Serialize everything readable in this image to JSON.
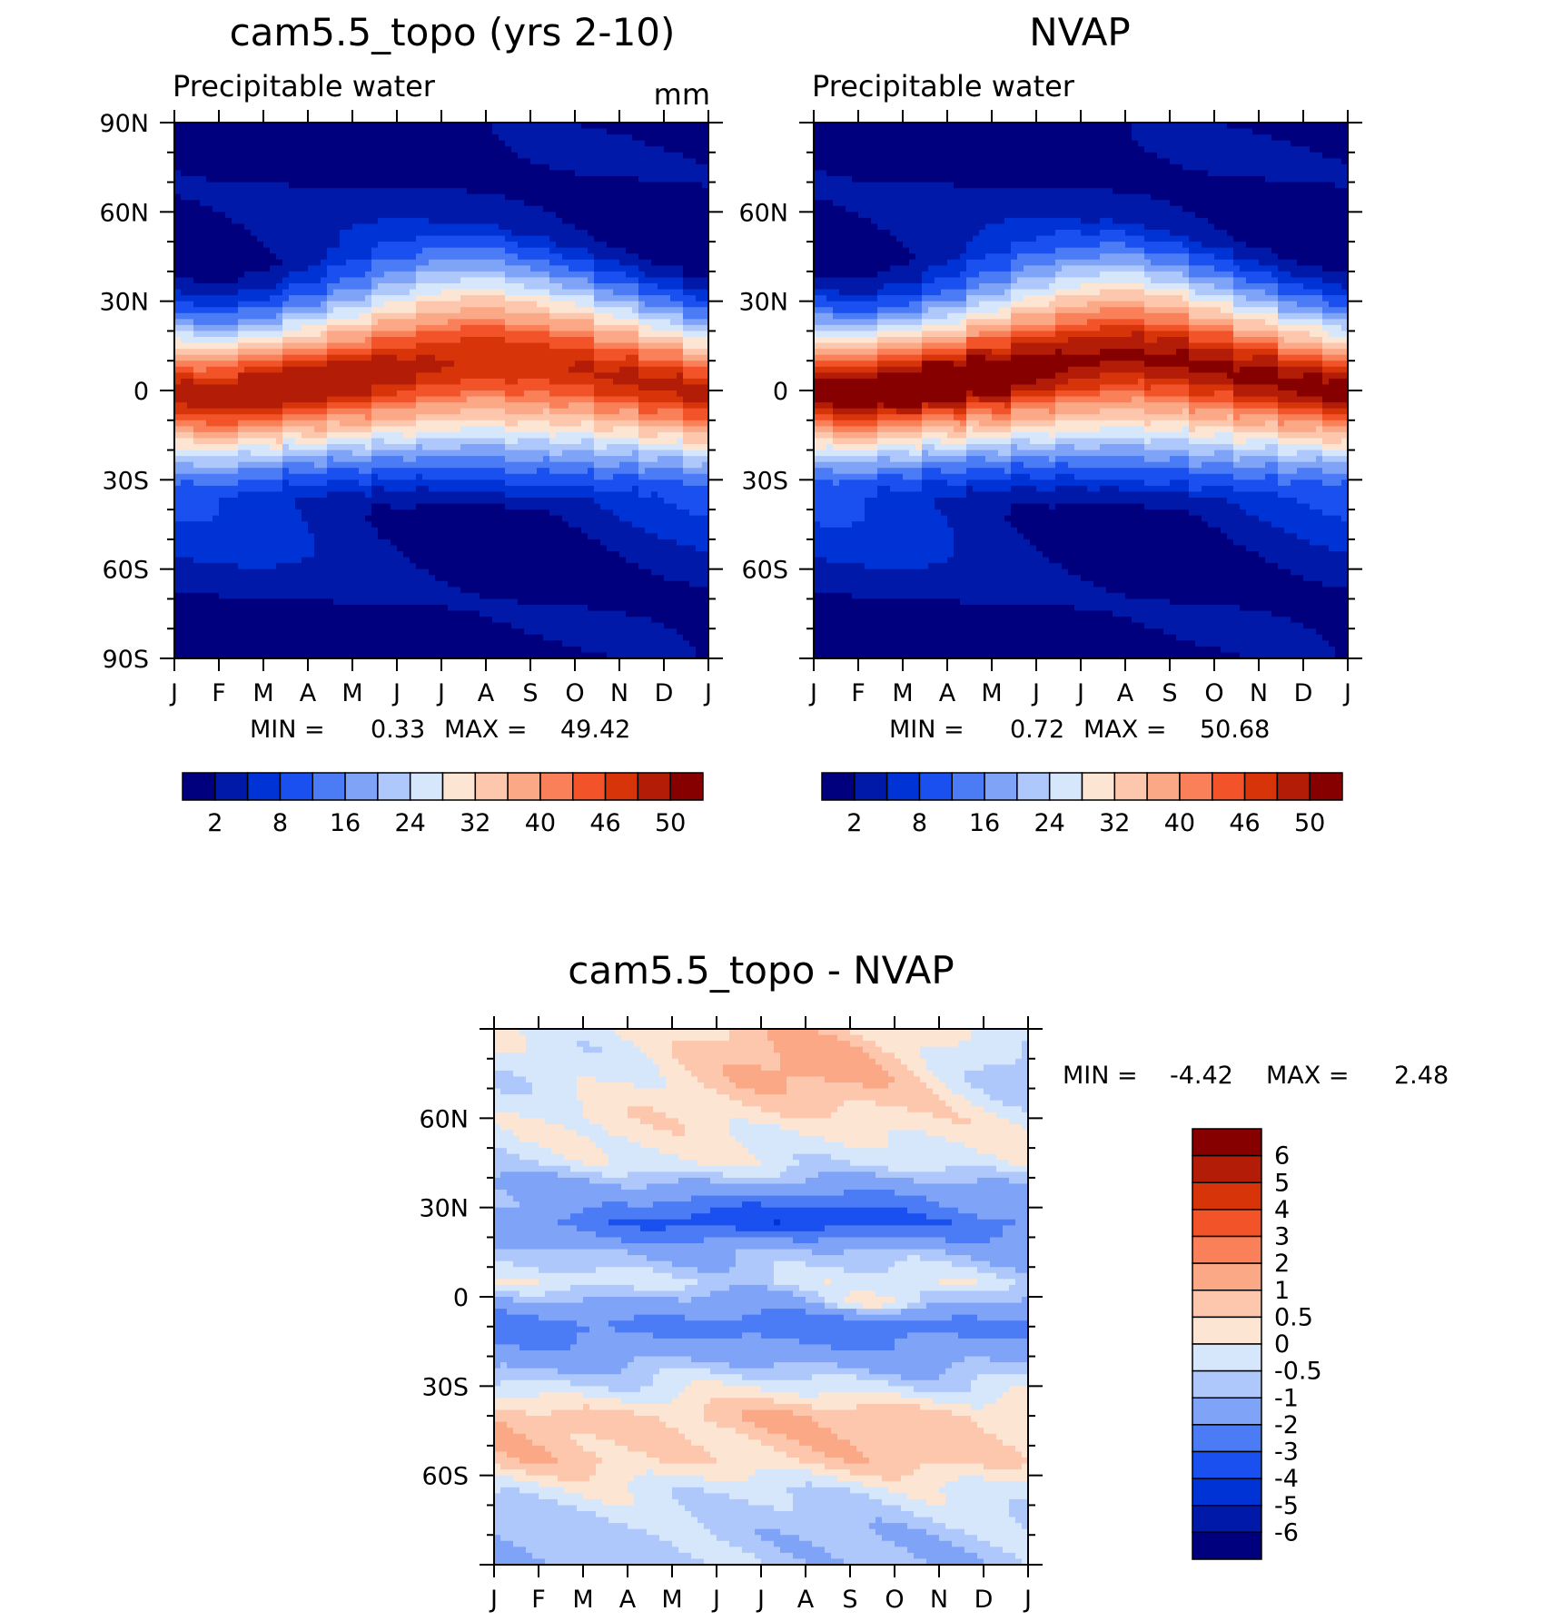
{
  "palette": {
    "pw": [
      "#00007e",
      "#0019a8",
      "#0033d6",
      "#1a4ff0",
      "#4b7cf5",
      "#7fa4f7",
      "#afc8fb",
      "#d6e7fb",
      "#fde5d3",
      "#fcc7ad",
      "#fba886",
      "#fa8059",
      "#f35328",
      "#d8340a",
      "#b31c06",
      "#870000"
    ],
    "diff": [
      "#00007e",
      "#0019a8",
      "#0033d6",
      "#1a4ff0",
      "#4b7cf5",
      "#7fa4f7",
      "#afc8fb",
      "#d6e7fb",
      "#fde5d3",
      "#fcc7ad",
      "#fba886",
      "#fa8059",
      "#f35328",
      "#d8340a",
      "#b31c06",
      "#870000"
    ]
  },
  "chart_data": [
    {
      "type": "heatmap",
      "title": "cam5.5_topo (yrs 2-10)",
      "subtitle": "Precipitable water",
      "units": "mm",
      "x_ticks": [
        "J",
        "F",
        "M",
        "A",
        "M",
        "J",
        "J",
        "A",
        "S",
        "O",
        "N",
        "D",
        "J"
      ],
      "y_ticks": [
        "90N",
        "60N",
        "30N",
        "0",
        "30S",
        "60S",
        "90S"
      ],
      "min_label": "MIN =",
      "min": "0.33",
      "max_label": "MAX =",
      "max": "49.42",
      "colorbar_labels": [
        "2",
        "8",
        "16",
        "24",
        "32",
        "40",
        "46",
        "50"
      ],
      "levels": [
        2,
        5,
        8,
        12,
        16,
        20,
        24,
        28,
        32,
        36,
        40,
        43,
        46,
        48,
        50
      ],
      "ylim": [
        -90,
        90
      ],
      "peak_lat_by_month": [
        -2,
        -3,
        -1,
        2,
        5,
        8,
        10,
        11,
        9,
        7,
        4,
        1
      ],
      "peak_value": 49.42
    },
    {
      "type": "heatmap",
      "title": "NVAP",
      "subtitle": "Precipitable water",
      "x_ticks": [
        "J",
        "F",
        "M",
        "A",
        "M",
        "J",
        "J",
        "A",
        "S",
        "O",
        "N",
        "D",
        "J"
      ],
      "y_ticks": [
        "60N",
        "30N",
        "0",
        "30S",
        "60S"
      ],
      "min_label": "MIN =",
      "min": "0.72",
      "max_label": "MAX =",
      "max": "50.68",
      "colorbar_labels": [
        "2",
        "8",
        "16",
        "24",
        "32",
        "40",
        "46",
        "50"
      ],
      "levels": [
        2,
        5,
        8,
        12,
        16,
        20,
        24,
        28,
        32,
        36,
        40,
        43,
        46,
        48,
        50
      ],
      "ylim": [
        -90,
        90
      ],
      "peak_lat_by_month": [
        -1,
        -2,
        0,
        3,
        6,
        9,
        11,
        12,
        10,
        7,
        4,
        1
      ],
      "peak_value": 50.68
    },
    {
      "type": "heatmap",
      "title": "cam5.5_topo - NVAP",
      "x_ticks": [
        "J",
        "F",
        "M",
        "A",
        "M",
        "J",
        "J",
        "A",
        "S",
        "O",
        "N",
        "D",
        "J"
      ],
      "y_ticks": [
        "60N",
        "30N",
        "0",
        "30S",
        "60S"
      ],
      "min_label": "MIN =",
      "min": "-4.42",
      "max_label": "MAX =",
      "max": "2.48",
      "colorbar_labels": [
        "6",
        "5",
        "4",
        "3",
        "2",
        "1",
        "0.5",
        "0",
        "-0.5",
        "-1",
        "-2",
        "-3",
        "-4",
        "-5",
        "-6"
      ],
      "levels": [
        -6,
        -5,
        -4,
        -3,
        -2,
        -1,
        -0.5,
        0,
        0.5,
        1,
        2,
        3,
        4,
        5,
        6
      ],
      "ylim": [
        -90,
        90
      ],
      "zonal_diff_profile": [
        {
          "lat": 80,
          "value": 0.3
        },
        {
          "lat": 60,
          "value": 0.2
        },
        {
          "lat": 45,
          "value": -0.2
        },
        {
          "lat": 35,
          "value": -1.5
        },
        {
          "lat": 25,
          "value": -3.0
        },
        {
          "lat": 15,
          "value": -1.0
        },
        {
          "lat": 5,
          "value": -0.3
        },
        {
          "lat": -10,
          "value": -2.5
        },
        {
          "lat": -25,
          "value": -0.8
        },
        {
          "lat": -40,
          "value": 0.8
        },
        {
          "lat": -55,
          "value": 0.6
        },
        {
          "lat": -65,
          "value": -0.3
        },
        {
          "lat": -80,
          "value": -0.8
        }
      ]
    }
  ]
}
